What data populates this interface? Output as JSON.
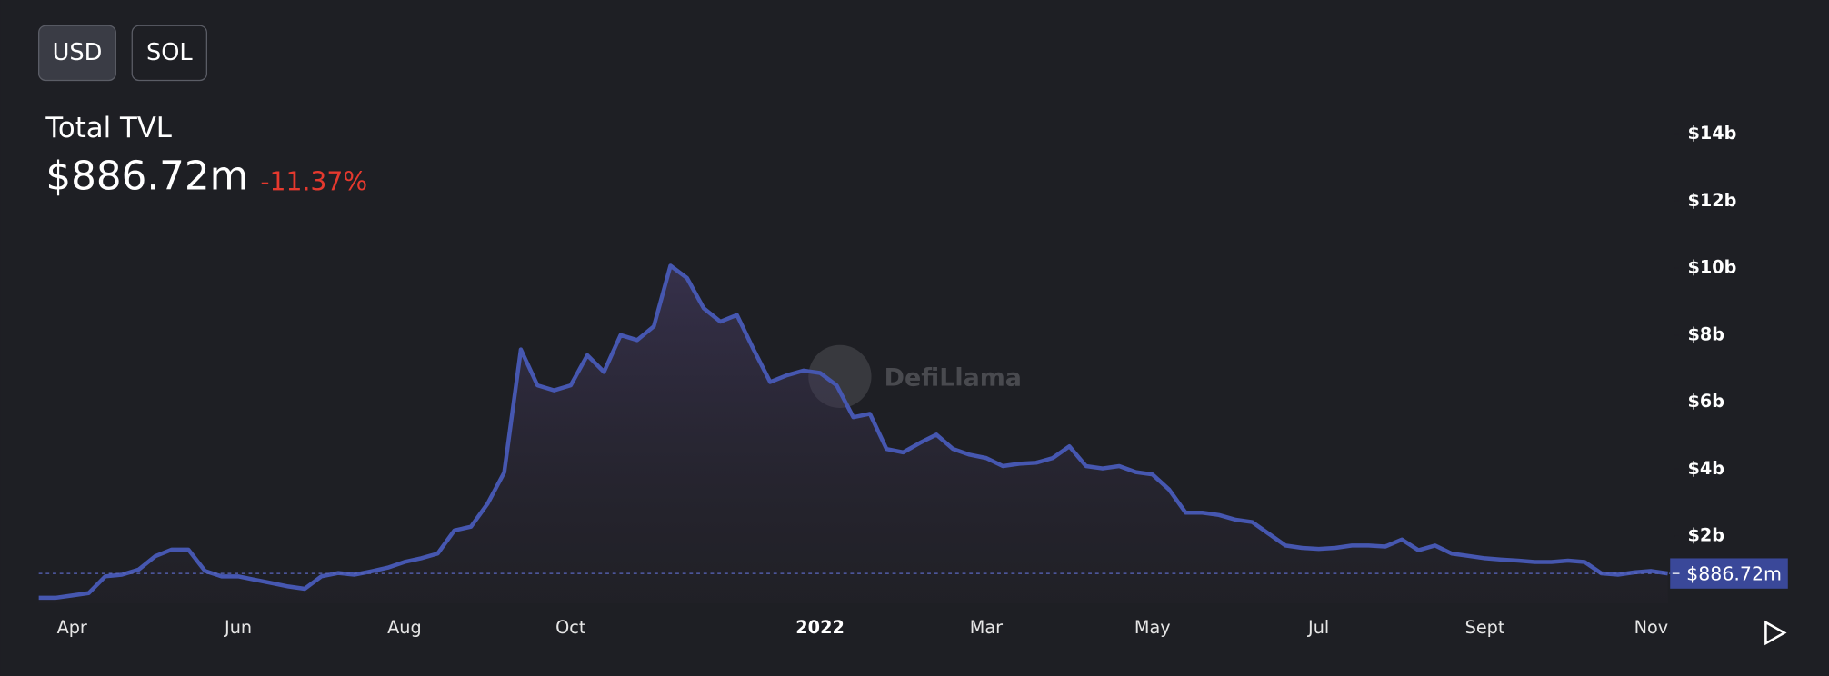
{
  "buttons": [
    "USD",
    "SOL"
  ],
  "header": {
    "title": "Total TVL",
    "value": "$886.72m",
    "change": "-11.37%"
  },
  "watermark": "DefiLlama",
  "chart_data": {
    "type": "line",
    "color": "#4657b0",
    "categories": [
      null,
      null,
      "Apr",
      null,
      null,
      null,
      null,
      null,
      null,
      null,
      null,
      null,
      "Jun",
      null,
      null,
      null,
      null,
      null,
      null,
      null,
      null,
      null,
      "Aug",
      null,
      null,
      null,
      null,
      null,
      null,
      null,
      null,
      null,
      "Oct",
      null,
      null,
      null,
      null,
      null,
      null,
      null,
      null,
      null,
      null,
      null,
      null,
      null,
      null,
      "2022",
      null,
      null,
      null,
      null,
      null,
      null,
      null,
      null,
      null,
      "Mar",
      null,
      null,
      null,
      null,
      null,
      null,
      null,
      null,
      null,
      "May",
      null,
      null,
      null,
      null,
      null,
      null,
      null,
      null,
      null,
      "Jul",
      null,
      null,
      null,
      null,
      null,
      null,
      null,
      null,
      null,
      "Sept",
      null,
      null,
      null,
      null,
      null,
      null,
      null,
      null,
      null,
      "Nov",
      null
    ],
    "values": [
      0.16,
      0.16,
      0.23,
      0.3,
      0.8,
      0.85,
      1.0,
      1.4,
      1.6,
      1.6,
      0.96,
      0.8,
      0.8,
      0.7,
      0.6,
      0.5,
      0.43,
      0.8,
      0.9,
      0.85,
      0.95,
      1.06,
      1.23,
      1.34,
      1.48,
      2.17,
      2.28,
      2.97,
      3.9,
      7.57,
      6.5,
      6.35,
      6.5,
      7.4,
      6.9,
      8.0,
      7.85,
      8.26,
      10.07,
      9.7,
      8.8,
      8.4,
      8.6,
      7.57,
      6.6,
      6.8,
      6.94,
      6.87,
      6.5,
      5.55,
      5.65,
      4.6,
      4.5,
      4.78,
      5.03,
      4.6,
      4.43,
      4.33,
      4.09,
      4.16,
      4.19,
      4.33,
      4.68,
      4.09,
      4.02,
      4.09,
      3.91,
      3.84,
      3.39,
      2.7,
      2.7,
      2.63,
      2.49,
      2.42,
      2.07,
      1.72,
      1.65,
      1.62,
      1.65,
      1.72,
      1.72,
      1.69,
      1.9,
      1.58,
      1.72,
      1.48,
      1.41,
      1.34,
      1.3,
      1.27,
      1.23,
      1.23,
      1.27,
      1.23,
      0.89,
      0.85,
      0.92,
      0.96,
      0.88672
    ],
    "current": {
      "value": 0.88672,
      "label": "$886.72m"
    },
    "ylim": [
      0,
      15
    ],
    "yticks": [
      {
        "value": 2,
        "label": "$2b"
      },
      {
        "value": 4,
        "label": "$4b"
      },
      {
        "value": 6,
        "label": "$6b"
      },
      {
        "value": 8,
        "label": "$8b"
      },
      {
        "value": 10,
        "label": "$10b"
      },
      {
        "value": 12,
        "label": "$12b"
      },
      {
        "value": 14,
        "label": "$14b"
      }
    ]
  }
}
